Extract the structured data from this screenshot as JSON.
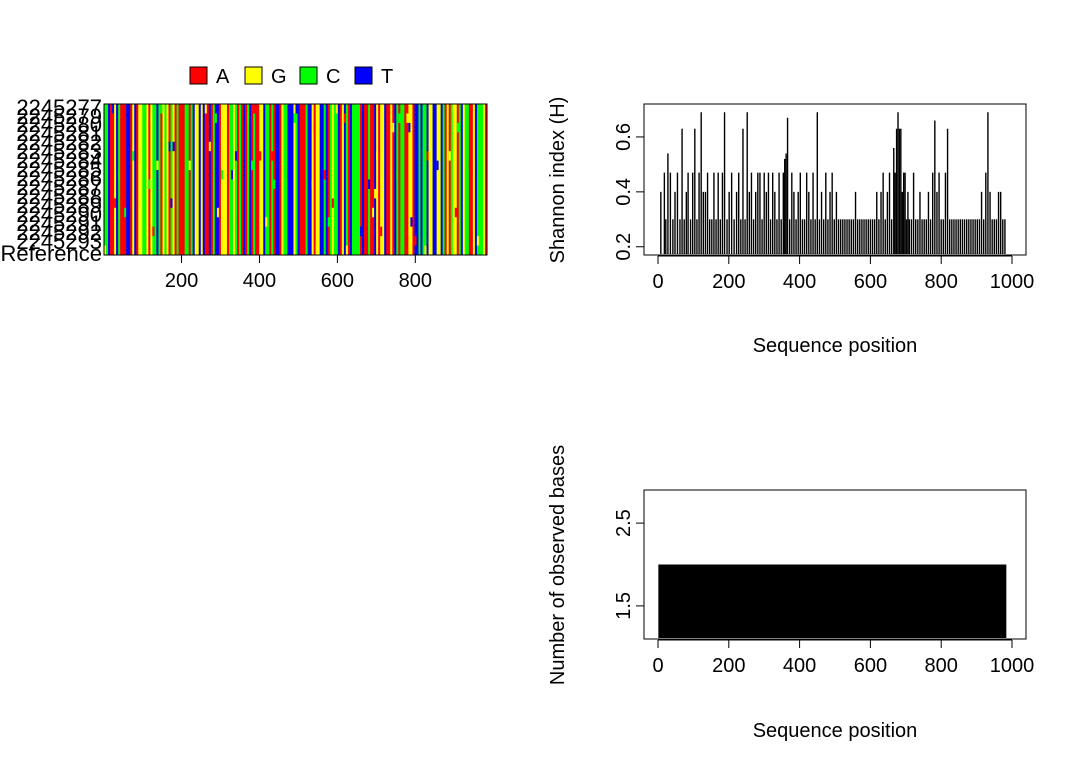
{
  "alignment": {
    "type": "heatmap",
    "legend": [
      {
        "label": "A",
        "color": "#ff0000"
      },
      {
        "label": "G",
        "color": "#ffff00"
      },
      {
        "label": "C",
        "color": "#00ff00"
      },
      {
        "label": "T",
        "color": "#0000ff"
      }
    ],
    "sequence_labels": [
      "Reference",
      "2245277"
    ],
    "x_ticks": [
      200,
      400,
      600,
      800
    ],
    "x_range": [
      1,
      984
    ],
    "n_positions": 984
  },
  "chart_data": [
    {
      "type": "bar",
      "title": "",
      "xlabel": "Sequence position",
      "ylabel": "Shannon index (H)",
      "xlim": [
        0,
        1000
      ],
      "ylim": [
        0.17,
        0.72
      ],
      "x_ticks": [
        0,
        200,
        400,
        600,
        800,
        1000
      ],
      "y_ticks": [
        "0.2",
        "0.4",
        "0.6"
      ],
      "y_tick_values": [
        0.2,
        0.4,
        0.6
      ],
      "baseline": 0.174,
      "spikes": [
        [
          8,
          0.4
        ],
        [
          18,
          0.47
        ],
        [
          22,
          0.3
        ],
        [
          28,
          0.54
        ],
        [
          35,
          0.47
        ],
        [
          42,
          0.3
        ],
        [
          48,
          0.4
        ],
        [
          55,
          0.47
        ],
        [
          62,
          0.3
        ],
        [
          68,
          0.63
        ],
        [
          74,
          0.3
        ],
        [
          80,
          0.4
        ],
        [
          85,
          0.47
        ],
        [
          92,
          0.3
        ],
        [
          98,
          0.47
        ],
        [
          104,
          0.63
        ],
        [
          110,
          0.3
        ],
        [
          116,
          0.47
        ],
        [
          122,
          0.69
        ],
        [
          128,
          0.4
        ],
        [
          134,
          0.4
        ],
        [
          140,
          0.47
        ],
        [
          146,
          0.3
        ],
        [
          152,
          0.3
        ],
        [
          158,
          0.47
        ],
        [
          164,
          0.3
        ],
        [
          170,
          0.47
        ],
        [
          176,
          0.3
        ],
        [
          182,
          0.47
        ],
        [
          188,
          0.69
        ],
        [
          195,
          0.3
        ],
        [
          201,
          0.4
        ],
        [
          208,
          0.47
        ],
        [
          215,
          0.3
        ],
        [
          222,
          0.4
        ],
        [
          228,
          0.47
        ],
        [
          234,
          0.3
        ],
        [
          240,
          0.63
        ],
        [
          246,
          0.3
        ],
        [
          252,
          0.69
        ],
        [
          258,
          0.4
        ],
        [
          264,
          0.47
        ],
        [
          270,
          0.3
        ],
        [
          276,
          0.4
        ],
        [
          282,
          0.47
        ],
        [
          288,
          0.47
        ],
        [
          294,
          0.3
        ],
        [
          300,
          0.47
        ],
        [
          306,
          0.4
        ],
        [
          312,
          0.47
        ],
        [
          318,
          0.3
        ],
        [
          324,
          0.47
        ],
        [
          330,
          0.4
        ],
        [
          336,
          0.3
        ],
        [
          342,
          0.47
        ],
        [
          348,
          0.3
        ],
        [
          354,
          0.47
        ],
        [
          358,
          0.52
        ],
        [
          362,
          0.54
        ],
        [
          366,
          0.67
        ],
        [
          372,
          0.3
        ],
        [
          378,
          0.47
        ],
        [
          384,
          0.4
        ],
        [
          390,
          0.3
        ],
        [
          396,
          0.4
        ],
        [
          402,
          0.47
        ],
        [
          408,
          0.3
        ],
        [
          414,
          0.3
        ],
        [
          420,
          0.47
        ],
        [
          426,
          0.4
        ],
        [
          432,
          0.3
        ],
        [
          438,
          0.47
        ],
        [
          444,
          0.3
        ],
        [
          450,
          0.69
        ],
        [
          456,
          0.3
        ],
        [
          462,
          0.4
        ],
        [
          468,
          0.3
        ],
        [
          474,
          0.47
        ],
        [
          480,
          0.3
        ],
        [
          486,
          0.4
        ],
        [
          492,
          0.47
        ],
        [
          498,
          0.3
        ],
        [
          504,
          0.4
        ],
        [
          510,
          0.3
        ],
        [
          516,
          0.3
        ],
        [
          522,
          0.3
        ],
        [
          528,
          0.3
        ],
        [
          534,
          0.3
        ],
        [
          540,
          0.3
        ],
        [
          546,
          0.3
        ],
        [
          552,
          0.3
        ],
        [
          558,
          0.4
        ],
        [
          564,
          0.3
        ],
        [
          570,
          0.3
        ],
        [
          576,
          0.3
        ],
        [
          582,
          0.3
        ],
        [
          588,
          0.3
        ],
        [
          594,
          0.3
        ],
        [
          600,
          0.3
        ],
        [
          606,
          0.3
        ],
        [
          612,
          0.3
        ],
        [
          618,
          0.4
        ],
        [
          624,
          0.3
        ],
        [
          630,
          0.4
        ],
        [
          636,
          0.47
        ],
        [
          642,
          0.3
        ],
        [
          648,
          0.4
        ],
        [
          654,
          0.47
        ],
        [
          660,
          0.3
        ],
        [
          666,
          0.56
        ],
        [
          670,
          0.47
        ],
        [
          674,
          0.63
        ],
        [
          678,
          0.69
        ],
        [
          682,
          0.63
        ],
        [
          686,
          0.63
        ],
        [
          690,
          0.4
        ],
        [
          694,
          0.47
        ],
        [
          698,
          0.47
        ],
        [
          702,
          0.3
        ],
        [
          706,
          0.4
        ],
        [
          710,
          0.3
        ],
        [
          716,
          0.3
        ],
        [
          722,
          0.47
        ],
        [
          728,
          0.3
        ],
        [
          734,
          0.3
        ],
        [
          740,
          0.4
        ],
        [
          746,
          0.3
        ],
        [
          752,
          0.3
        ],
        [
          758,
          0.3
        ],
        [
          764,
          0.4
        ],
        [
          770,
          0.3
        ],
        [
          776,
          0.47
        ],
        [
          782,
          0.66
        ],
        [
          788,
          0.4
        ],
        [
          794,
          0.47
        ],
        [
          800,
          0.3
        ],
        [
          806,
          0.3
        ],
        [
          812,
          0.47
        ],
        [
          818,
          0.63
        ],
        [
          824,
          0.3
        ],
        [
          830,
          0.3
        ],
        [
          836,
          0.3
        ],
        [
          842,
          0.3
        ],
        [
          848,
          0.3
        ],
        [
          854,
          0.3
        ],
        [
          860,
          0.3
        ],
        [
          866,
          0.3
        ],
        [
          872,
          0.3
        ],
        [
          878,
          0.3
        ],
        [
          884,
          0.3
        ],
        [
          890,
          0.3
        ],
        [
          896,
          0.3
        ],
        [
          902,
          0.3
        ],
        [
          908,
          0.3
        ],
        [
          914,
          0.4
        ],
        [
          920,
          0.3
        ],
        [
          926,
          0.47
        ],
        [
          932,
          0.69
        ],
        [
          938,
          0.4
        ],
        [
          944,
          0.3
        ],
        [
          950,
          0.3
        ],
        [
          956,
          0.3
        ],
        [
          962,
          0.4
        ],
        [
          968,
          0.4
        ],
        [
          974,
          0.3
        ],
        [
          980,
          0.3
        ]
      ]
    },
    {
      "type": "bar",
      "title": "",
      "xlabel": "Sequence position",
      "ylabel": "Number of observed bases",
      "xlim": [
        0,
        1000
      ],
      "ylim": [
        1.1,
        2.9
      ],
      "x_ticks": [
        0,
        200,
        400,
        600,
        800,
        1000
      ],
      "y_ticks": [
        "1.5",
        "2.5"
      ],
      "y_tick_values": [
        1.5,
        2.5
      ],
      "range": [
        1,
        984
      ],
      "value": 2
    }
  ]
}
